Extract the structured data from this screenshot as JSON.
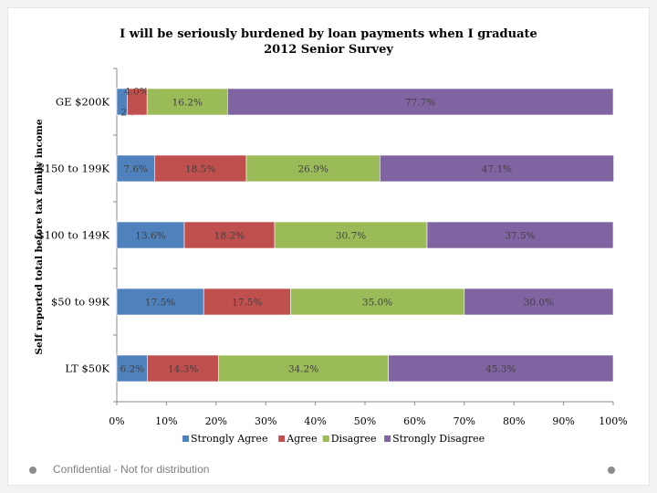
{
  "chart_data": {
    "type": "bar",
    "stacked": true,
    "orientation": "horizontal",
    "title": "I will be seriously burdened by loan payments when I graduate",
    "subtitle": "2012 Senior Survey",
    "ylabel": "Self reported total before tax family income",
    "xlabel": "",
    "xlim": [
      0,
      100
    ],
    "x_ticks": [
      "0%",
      "10%",
      "20%",
      "30%",
      "40%",
      "50%",
      "60%",
      "70%",
      "80%",
      "90%",
      "100%"
    ],
    "categories": [
      "GE $200K",
      "$150 to 199K",
      "$100 to 149K",
      "$50 to 99K",
      "LT $50K"
    ],
    "series": [
      {
        "name": "Strongly Agree",
        "color": "#4f81bd",
        "values": [
          2.1,
          7.6,
          13.6,
          17.5,
          6.2
        ],
        "labels": [
          "2.1%",
          "7.6%",
          "13.6%",
          "17.5%",
          "6.2%"
        ]
      },
      {
        "name": "Agree",
        "color": "#c0504d",
        "values": [
          4.0,
          18.5,
          18.2,
          17.5,
          14.3
        ],
        "labels": [
          "4.0%",
          "18.5%",
          "18.2%",
          "17.5%",
          "14.3%"
        ]
      },
      {
        "name": "Disagree",
        "color": "#9bbb59",
        "values": [
          16.2,
          26.9,
          30.7,
          35.0,
          34.2
        ],
        "labels": [
          "16.2%",
          "26.9%",
          "30.7%",
          "35.0%",
          "34.2%"
        ]
      },
      {
        "name": "Strongly Disagree",
        "color": "#8064a2",
        "values": [
          77.7,
          47.1,
          37.5,
          30.0,
          45.3
        ],
        "labels": [
          "77.7%",
          "47.1%",
          "37.5%",
          "30.0%",
          "45.3%"
        ]
      }
    ],
    "legend": "bottom"
  },
  "footer": {
    "confidential": "Confidential - Not for distribution"
  }
}
